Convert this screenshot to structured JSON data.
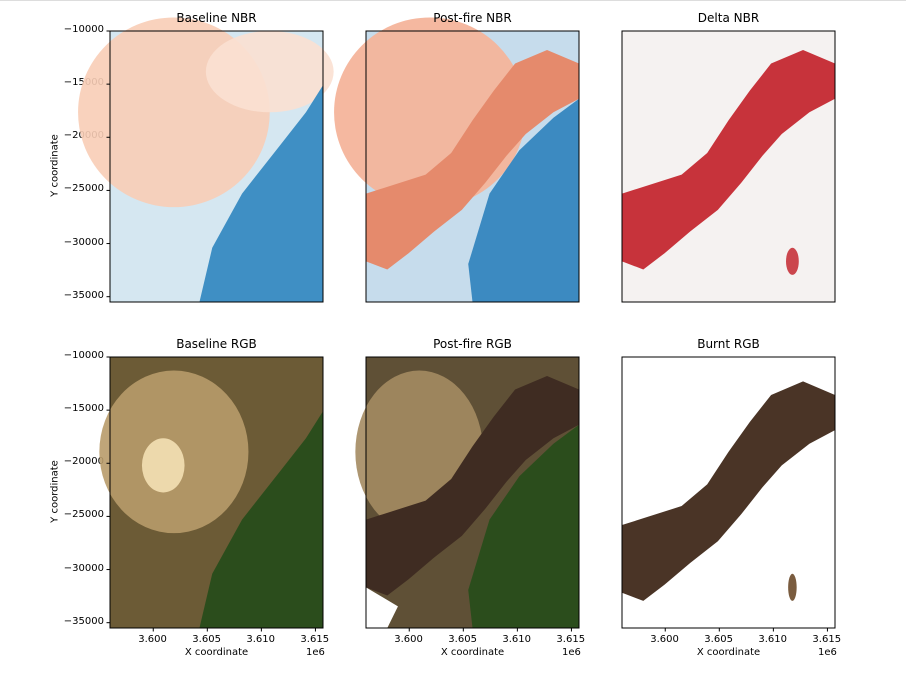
{
  "chart_data": [
    {
      "type": "heatmap",
      "title": "Baseline NBR",
      "colormap": "RdBu",
      "xlabel": "",
      "ylabel": "Y coordinate",
      "xticks_visible": false,
      "yticks_visible": true
    },
    {
      "type": "heatmap",
      "title": "Post-fire NBR",
      "colormap": "RdBu",
      "xlabel": "",
      "ylabel": "",
      "xticks_visible": false,
      "yticks_visible": false
    },
    {
      "type": "heatmap",
      "title": "Delta NBR",
      "colormap": "Reds",
      "xlabel": "",
      "ylabel": "",
      "xticks_visible": false,
      "yticks_visible": false
    },
    {
      "type": "image",
      "title": "Baseline RGB",
      "xlabel": "X coordinate",
      "ylabel": "Y coordinate",
      "xticks_visible": true,
      "yticks_visible": true,
      "offset_label": "1e6"
    },
    {
      "type": "image",
      "title": "Post-fire RGB",
      "xlabel": "X coordinate",
      "ylabel": "",
      "xticks_visible": true,
      "yticks_visible": false,
      "offset_label": "1e6"
    },
    {
      "type": "image",
      "title": "Burnt RGB",
      "xlabel": "X coordinate",
      "ylabel": "",
      "xticks_visible": true,
      "yticks_visible": false,
      "offset_label": "1e6"
    }
  ],
  "axes": {
    "xlim": [
      3.596,
      3.6157
    ],
    "ylim": [
      -35500,
      -10000
    ],
    "xticks": [
      3.6,
      3.605,
      3.61,
      3.615
    ],
    "xtick_labels": [
      "3.600",
      "3.605",
      "3.610",
      "3.615"
    ],
    "yticks": [
      -10000,
      -15000,
      -20000,
      -25000,
      -30000,
      -35000
    ],
    "ytick_labels": [
      "−10000",
      "−15000",
      "−20000",
      "−25000",
      "−30000",
      "−35000"
    ]
  }
}
